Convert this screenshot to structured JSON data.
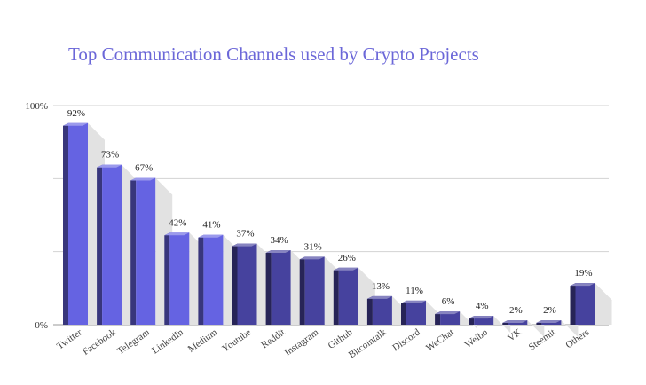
{
  "chart_data": {
    "type": "bar",
    "title": "Top Communication Channels used by Crypto Projects",
    "xlabel": "",
    "ylabel": "",
    "ylim": [
      0,
      100
    ],
    "y_tick_labels": [
      "0%",
      "100%"
    ],
    "grid": true,
    "legend": "none",
    "value_suffix": "%",
    "categories": [
      "Twitter",
      "Facebook",
      "Telegram",
      "LinkedIn",
      "Medium",
      "Youtube",
      "Reddit",
      "Instagram",
      "Github",
      "Bitcointalk",
      "Discord",
      "WeChat",
      "Weibo",
      "VK",
      "Steemit",
      "Others"
    ],
    "values": [
      92,
      73,
      67,
      42,
      41,
      37,
      34,
      31,
      26,
      13,
      11,
      6,
      4,
      2,
      2,
      19
    ],
    "bar_colors": [
      "#6563e2",
      "#6563e2",
      "#6563e2",
      "#6563e2",
      "#6563e2",
      "#46429e",
      "#46429e",
      "#46429e",
      "#46429e",
      "#46429e",
      "#46429e",
      "#46429e",
      "#46429e",
      "#46429e",
      "#46429e",
      "#46429e"
    ]
  }
}
